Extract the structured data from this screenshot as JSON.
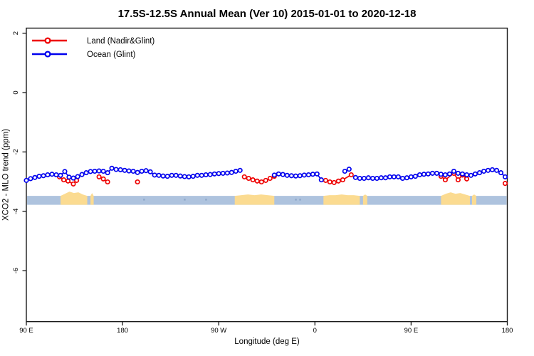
{
  "chart_data": {
    "type": "line",
    "title": "17.5S-12.5S Annual Mean (Ver 10)   2015-01-01 to 2020-12-18",
    "xlabel": "Longitude (deg E)",
    "ylabel": "XCO2 - MLO trend (ppm)",
    "grid": false,
    "legend_position": "top-left",
    "x_axis": {
      "range_display_deg": [
        0,
        450
      ],
      "ticks": [
        {
          "t": 0,
          "label": "90 E"
        },
        {
          "t": 90,
          "label": "180"
        },
        {
          "t": 180,
          "label": "90 W"
        },
        {
          "t": 270,
          "label": "0"
        },
        {
          "t": 360,
          "label": "90 E"
        },
        {
          "t": 450,
          "label": "180"
        }
      ]
    },
    "y_axis": {
      "range_ppm": [
        -7.7,
        2.2
      ],
      "ticks": [
        {
          "v": 2,
          "label": "2"
        },
        {
          "v": 0,
          "label": "0"
        },
        {
          "v": -2,
          "label": "-2"
        },
        {
          "v": -4,
          "label": "-4"
        },
        {
          "v": -6,
          "label": "-6"
        }
      ]
    },
    "series": [
      {
        "name": "Land (Nadir&Glint)",
        "color": "#EE0000",
        "marker": "open-circle",
        "segments": [
          [
            [
              31,
              -2.84
            ],
            [
              35,
              -2.94
            ],
            [
              39,
              -2.98
            ],
            [
              44,
              -3.08
            ],
            [
              47,
              -2.96
            ]
          ],
          [
            [
              68,
              -2.84
            ],
            [
              72,
              -2.91
            ],
            [
              76,
              -3.01
            ]
          ],
          [
            [
              104,
              -3.01
            ]
          ],
          [
            [
              204,
              -2.84
            ],
            [
              208,
              -2.89
            ],
            [
              212,
              -2.94
            ],
            [
              216,
              -2.98
            ],
            [
              220,
              -3.01
            ],
            [
              224,
              -2.96
            ],
            [
              228,
              -2.89
            ],
            [
              232,
              -2.82
            ]
          ],
          [
            [
              280,
              -2.96
            ],
            [
              284,
              -3.01
            ],
            [
              288,
              -3.03
            ],
            [
              292,
              -2.98
            ],
            [
              296,
              -2.94
            ],
            [
              304,
              -2.77
            ]
          ],
          [
            [
              388,
              -2.82
            ],
            [
              392,
              -2.94
            ],
            [
              400,
              -2.72
            ],
            [
              404,
              -2.94
            ],
            [
              408,
              -2.78
            ],
            [
              412,
              -2.91
            ]
          ],
          [
            [
              448,
              -3.06
            ]
          ]
        ]
      },
      {
        "name": "Ocean (Glint)",
        "color": "#0000EE",
        "marker": "open-circle",
        "segments": [
          [
            [
              0,
              -2.96
            ],
            [
              4,
              -2.9
            ],
            [
              8,
              -2.86
            ],
            [
              12,
              -2.82
            ],
            [
              16,
              -2.8
            ],
            [
              20,
              -2.77
            ],
            [
              24,
              -2.75
            ],
            [
              28,
              -2.77
            ],
            [
              32,
              -2.79
            ],
            [
              36,
              -2.66
            ],
            [
              40,
              -2.85
            ],
            [
              44,
              -2.88
            ],
            [
              48,
              -2.83
            ],
            [
              52,
              -2.76
            ],
            [
              56,
              -2.7
            ],
            [
              60,
              -2.66
            ],
            [
              64,
              -2.65
            ],
            [
              68,
              -2.64
            ],
            [
              72,
              -2.65
            ],
            [
              76,
              -2.7
            ],
            [
              80,
              -2.55
            ],
            [
              84,
              -2.59
            ],
            [
              88,
              -2.6
            ],
            [
              92,
              -2.62
            ],
            [
              96,
              -2.64
            ],
            [
              100,
              -2.65
            ],
            [
              104,
              -2.69
            ],
            [
              108,
              -2.65
            ],
            [
              112,
              -2.63
            ],
            [
              116,
              -2.67
            ],
            [
              120,
              -2.78
            ],
            [
              124,
              -2.79
            ],
            [
              128,
              -2.81
            ],
            [
              132,
              -2.82
            ],
            [
              136,
              -2.79
            ],
            [
              140,
              -2.79
            ],
            [
              144,
              -2.81
            ],
            [
              148,
              -2.83
            ],
            [
              152,
              -2.84
            ],
            [
              156,
              -2.82
            ],
            [
              160,
              -2.79
            ],
            [
              164,
              -2.79
            ],
            [
              168,
              -2.77
            ],
            [
              172,
              -2.76
            ],
            [
              176,
              -2.74
            ],
            [
              180,
              -2.73
            ],
            [
              184,
              -2.72
            ],
            [
              188,
              -2.71
            ],
            [
              192,
              -2.69
            ],
            [
              196,
              -2.65
            ],
            [
              200,
              -2.62
            ]
          ],
          [
            [
              232,
              -2.78
            ],
            [
              236,
              -2.74
            ],
            [
              240,
              -2.76
            ],
            [
              244,
              -2.79
            ],
            [
              248,
              -2.8
            ],
            [
              252,
              -2.81
            ],
            [
              256,
              -2.8
            ],
            [
              260,
              -2.78
            ],
            [
              264,
              -2.77
            ],
            [
              268,
              -2.75
            ],
            [
              272,
              -2.74
            ],
            [
              276,
              -2.94
            ]
          ],
          [
            [
              298,
              -2.65
            ],
            [
              302,
              -2.58
            ]
          ],
          [
            [
              308,
              -2.86
            ],
            [
              312,
              -2.89
            ],
            [
              316,
              -2.89
            ],
            [
              320,
              -2.87
            ],
            [
              324,
              -2.89
            ],
            [
              328,
              -2.89
            ],
            [
              332,
              -2.87
            ],
            [
              336,
              -2.87
            ],
            [
              340,
              -2.84
            ],
            [
              344,
              -2.84
            ],
            [
              348,
              -2.84
            ],
            [
              352,
              -2.89
            ],
            [
              356,
              -2.87
            ],
            [
              360,
              -2.84
            ],
            [
              364,
              -2.82
            ],
            [
              368,
              -2.77
            ],
            [
              372,
              -2.75
            ],
            [
              376,
              -2.74
            ],
            [
              380,
              -2.72
            ],
            [
              384,
              -2.72
            ],
            [
              388,
              -2.75
            ],
            [
              392,
              -2.77
            ],
            [
              396,
              -2.74
            ],
            [
              400,
              -2.65
            ],
            [
              404,
              -2.72
            ],
            [
              408,
              -2.74
            ],
            [
              412,
              -2.77
            ],
            [
              416,
              -2.79
            ],
            [
              420,
              -2.74
            ],
            [
              424,
              -2.7
            ],
            [
              428,
              -2.65
            ],
            [
              432,
              -2.62
            ],
            [
              436,
              -2.6
            ],
            [
              440,
              -2.62
            ],
            [
              444,
              -2.7
            ],
            [
              448,
              -2.84
            ]
          ]
        ]
      }
    ],
    "surface_strip": {
      "v_top": -3.48,
      "v_bottom": -3.78,
      "ocean_color": "#AEC3DE",
      "land_color": "#FBDB91",
      "speckle_color": "#8FA8C9",
      "land_patches": [
        {
          "t0": 32,
          "t1": 57,
          "profile": [
            0,
            3,
            6,
            4,
            5,
            2,
            0
          ]
        },
        {
          "t0": 60,
          "t1": 63,
          "profile": [
            0,
            4,
            0
          ]
        },
        {
          "t0": 195,
          "t1": 232,
          "profile": [
            0,
            1,
            2,
            1,
            2,
            1,
            0
          ]
        },
        {
          "t0": 278,
          "t1": 312,
          "profile": [
            0,
            1,
            1,
            2,
            1,
            1,
            0
          ]
        },
        {
          "t0": 315,
          "t1": 319,
          "profile": [
            0,
            2,
            0
          ]
        },
        {
          "t0": 388,
          "t1": 415,
          "profile": [
            0,
            3,
            5,
            3,
            4,
            2,
            0
          ]
        },
        {
          "t0": 417,
          "t1": 421,
          "profile": [
            0,
            2,
            0
          ]
        }
      ],
      "speckles": [
        110,
        148,
        168,
        252,
        256
      ]
    },
    "legend": {
      "items": [
        {
          "label": "Land (Nadir&Glint)",
          "color": "#EE0000"
        },
        {
          "label": "Ocean (Glint)",
          "color": "#0000EE"
        }
      ]
    },
    "colors": {
      "axis": "#1a1a1a",
      "background": "#FFFFFF"
    }
  }
}
